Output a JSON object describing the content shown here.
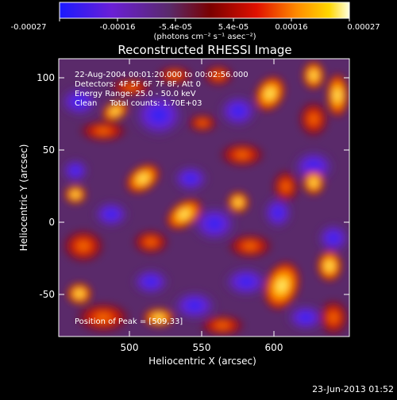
{
  "colorbar": {
    "ticks": [
      "-0.00027",
      "-0.00016",
      "-5.4e-05",
      "5.4e-05",
      "0.00016",
      "0.00027"
    ],
    "units_label": "(photons cm⁻² s⁻¹ asec⁻²)",
    "colors": [
      "#1a1aff",
      "#6a1fd6",
      "#5a2a6a",
      "#7a0000",
      "#e01000",
      "#ff8c00",
      "#ffd700",
      "#ffffe0"
    ]
  },
  "plot": {
    "title": "Reconstructed RHESSI Image",
    "xlabel": "Heliocentric X (arcsec)",
    "ylabel": "Heliocentric Y (arcsec)",
    "x_ticks": [
      "500",
      "550",
      "600"
    ],
    "y_ticks": [
      "100",
      "50",
      "0",
      "-50"
    ],
    "info": {
      "line1": "22-Aug-2004 00:01:20.000 to 00:02:56.000",
      "line2": "Detectors: 4F 5F 6F 7F 8F, Att 0",
      "line3": "Energy Range: 25.0 - 50.0 keV",
      "line4": "Clean     Total counts: 1.70E+03"
    },
    "peak_text": "Position of Peak = [509,33]"
  },
  "footer": {
    "date": "23-Jun-2013 01:52"
  }
}
